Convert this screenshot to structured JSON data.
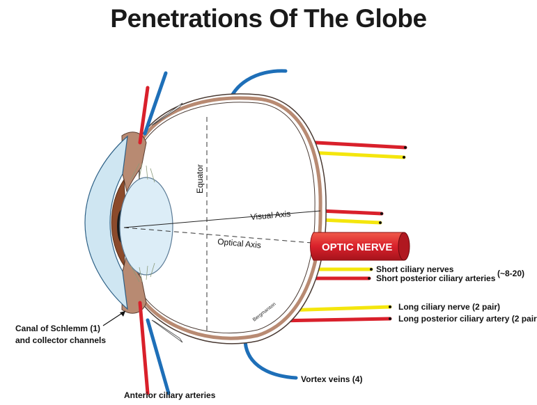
{
  "title": "Penetrations Of The Globe",
  "labels": {
    "equator": "Equator",
    "visual_axis": "Visual Axis",
    "optical_axis": "Optical Axis",
    "optic_nerve": "OPTIC NERVE",
    "short_ciliary_nerves": "Short ciliary nerves",
    "short_posterior_ciliary_arteries": "Short posterior ciliary arteries",
    "short_count": "(~8-20)",
    "long_ciliary_nerve": "Long ciliary nerve (2 pair)",
    "long_posterior_ciliary_artery": "Long posterior ciliary artery (2 pair",
    "bergmanson": "Bergmanson",
    "canal_line1": "Canal of Schlemm (1)",
    "canal_line2": "and collector channels",
    "vortex_veins": "Vortex veins (4)",
    "anterior_ciliary_arteries": "Anterior ciliary arteries"
  },
  "colors": {
    "artery": "#d9202b",
    "nerve": "#f4e60d",
    "vein": "#1e6fb8",
    "sclera": "#b88a72",
    "cornea": "#cfe6f2",
    "iris": "#8b4a2b",
    "lens": "#dcedf7"
  }
}
